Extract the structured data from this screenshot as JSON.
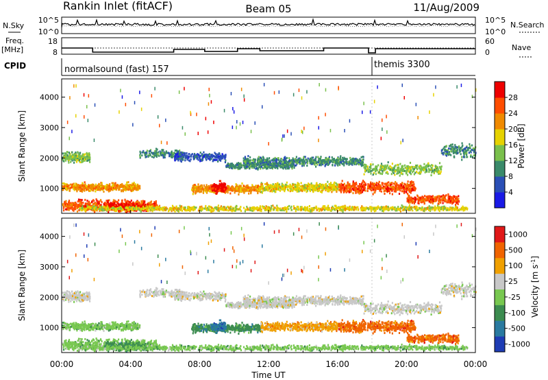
{
  "header": {
    "station": "Rankin Inlet (fitACF)",
    "beam": "Beam 05",
    "date": "11/Aug/2009"
  },
  "sky_panel": {
    "label": "N.Sky",
    "right_label": "N.Search",
    "left_ticks": [
      "10^5",
      "10^0"
    ],
    "right_ticks": [
      "10^5",
      "10^0"
    ]
  },
  "freq_panel": {
    "label_1": "Freq.",
    "label_2": "[MHz]",
    "right_label": "Nave",
    "left_ticks": [
      "18",
      "8"
    ],
    "right_ticks": [
      "60",
      "0"
    ]
  },
  "cpid_panel": {
    "label": "CPID",
    "program_1": "normalsound (fast) 157",
    "program_2": "themis 3300"
  },
  "chart_data": [
    {
      "type": "heatmap",
      "name": "power",
      "xlabel": "",
      "ylabel": "Slant Range [km]",
      "xlim": [
        0,
        24
      ],
      "ylim": [
        180,
        4600
      ],
      "yticks": [
        "1000",
        "2000",
        "3000",
        "4000"
      ],
      "colorbar_label": "Power [dB]",
      "colorbar_ticks": [
        "4",
        "8",
        "12",
        "16",
        "20",
        "24",
        "28"
      ],
      "colorbar_colors": [
        "#1a1ae6",
        "#2a4fb6",
        "#3a8a6a",
        "#7ac04c",
        "#e6d200",
        "#f08a00",
        "#ff4d00",
        "#ee0000"
      ]
    },
    {
      "type": "heatmap",
      "name": "velocity",
      "xlabel": "Time UT",
      "ylabel": "Slant Range [km]",
      "xlim": [
        0,
        24
      ],
      "ylim": [
        180,
        4600
      ],
      "yticks": [
        "1000",
        "2000",
        "3000",
        "4000"
      ],
      "xticks": [
        "00:00",
        "04:00",
        "08:00",
        "12:00",
        "16:00",
        "20:00",
        "00:00"
      ],
      "colorbar_label": "Velocity [m s",
      "colorbar_label_sup": "-1",
      "colorbar_label_end": "]",
      "colorbar_ticks": [
        "1000",
        "500",
        "100",
        "25",
        "-25",
        "-100",
        "-500",
        "-1000"
      ],
      "colorbar_colors": [
        "#1e3cb4",
        "#2a7aa0",
        "#3c8c50",
        "#78c850",
        "#c8c8c8",
        "#f0a000",
        "#f06400",
        "#e01818"
      ]
    }
  ]
}
